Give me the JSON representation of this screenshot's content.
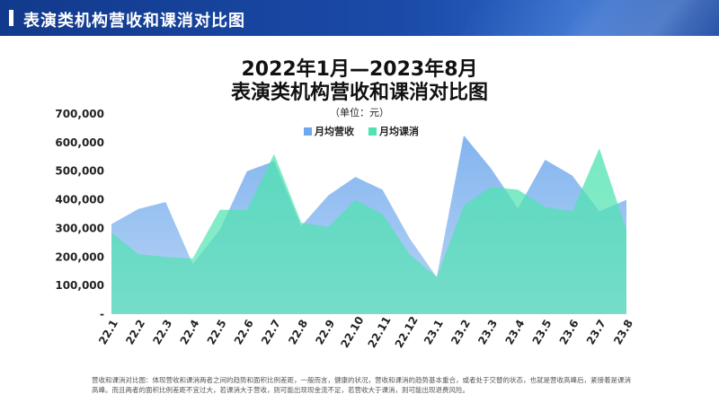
{
  "header": {
    "title": "表演类机构营收和课消对比图"
  },
  "chart_data": {
    "type": "area",
    "title": "2022年1月—2023年8月",
    "subtitle": "表演类机构营收和课消对比图",
    "unit_label": "（单位：元）",
    "categories": [
      "22.1",
      "22.2",
      "22.3",
      "22.4",
      "22.5",
      "22.6",
      "22.7",
      "22.8",
      "22.9",
      "22.10",
      "22.11",
      "22.12",
      "23.1",
      "23.2",
      "23.3",
      "23.4",
      "23.5",
      "23.6",
      "23.7",
      "23.8"
    ],
    "yticks": [
      "-",
      "100,000",
      "200,000",
      "300,000",
      "400,000",
      "500,000",
      "600,000",
      "700,000"
    ],
    "ylim": [
      0,
      700000
    ],
    "legend_position": "top-center",
    "series": [
      {
        "name": "月均营收",
        "color": "#6ea8ec",
        "values": [
          315000,
          368000,
          392000,
          175000,
          295000,
          500000,
          535000,
          308000,
          415000,
          480000,
          435000,
          265000,
          130000,
          625000,
          510000,
          370000,
          540000,
          485000,
          360000,
          400000
        ]
      },
      {
        "name": "月均课消",
        "color": "#4fe3b0",
        "values": [
          285000,
          210000,
          200000,
          195000,
          365000,
          365000,
          560000,
          320000,
          305000,
          400000,
          350000,
          210000,
          130000,
          380000,
          445000,
          435000,
          375000,
          360000,
          580000,
          295000
        ]
      }
    ]
  },
  "footnote": "营收和课消对比图：体现营收和课消两者之间的趋势和面积比例差距，一般而言，健康的状况，营收和课消的趋势基本重合，或者处于交替的状态，也就是营收高峰后，紧接着是课消高峰。而且两者的面积比例差距不宜过大，若课消大于营收，则可能出现现金流不足，若营收大于课消，则可能出现退费风险。"
}
